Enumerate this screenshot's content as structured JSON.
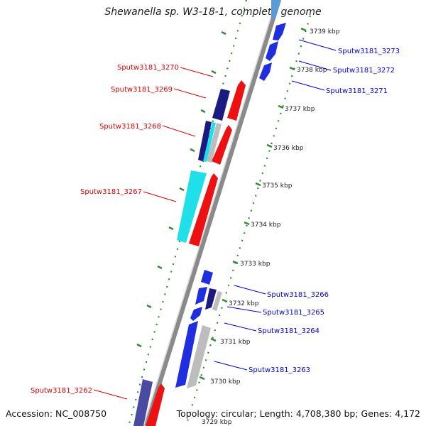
{
  "title": "Shewanella sp. W3-18-1, complete genome",
  "footer": {
    "accession": "Accession: NC_008750",
    "summary": "Topology: circular; Length: 4,708,380 bp; Genes: 4,172"
  },
  "colors": {
    "tick": "#2e8b2e",
    "backbone": "#7f7f7f",
    "label_forward": "#0000dd",
    "label_reverse": "#dd0000",
    "gene_blue": "#1f2fe0",
    "gene_navy": "#1a1a80",
    "gene_red": "#ee1111",
    "gene_cyan": "#1fe0e8",
    "gene_gray": "#bdbdbd",
    "gene_slate": "#4a4aa0"
  },
  "scale": {
    "unit": "kbp",
    "ticks": [
      {
        "value": 3739,
        "label": "3739 kbp"
      },
      {
        "value": 3738,
        "label": "3738 kbp"
      },
      {
        "value": 3737,
        "label": "3737 kbp"
      },
      {
        "value": 3736,
        "label": "3736 kbp"
      },
      {
        "value": 3735,
        "label": "3735 kbp"
      },
      {
        "value": 3734,
        "label": "3734 kbp"
      },
      {
        "value": 3733,
        "label": "3733 kbp"
      },
      {
        "value": 3732,
        "label": "3732 kbp"
      },
      {
        "value": 3731,
        "label": "3731 kbp"
      },
      {
        "value": 3730,
        "label": "3730 kbp"
      },
      {
        "value": 3729,
        "label": "3729 kbp"
      }
    ]
  },
  "gene_labels": [
    {
      "name": "Sputw3181_3273",
      "strand": "forward"
    },
    {
      "name": "Sputw3181_3272",
      "strand": "forward"
    },
    {
      "name": "Sputw3181_3271",
      "strand": "forward"
    },
    {
      "name": "Sputw3181_3270",
      "strand": "reverse"
    },
    {
      "name": "Sputw3181_3269",
      "strand": "reverse"
    },
    {
      "name": "Sputw3181_3268",
      "strand": "reverse"
    },
    {
      "name": "Sputw3181_3267",
      "strand": "reverse"
    },
    {
      "name": "Sputw3181_3266",
      "strand": "forward"
    },
    {
      "name": "Sputw3181_3265",
      "strand": "forward"
    },
    {
      "name": "Sputw3181_3264",
      "strand": "forward"
    },
    {
      "name": "Sputw3181_3263",
      "strand": "forward"
    },
    {
      "name": "Sputw3181_3262",
      "strand": "reverse"
    }
  ]
}
